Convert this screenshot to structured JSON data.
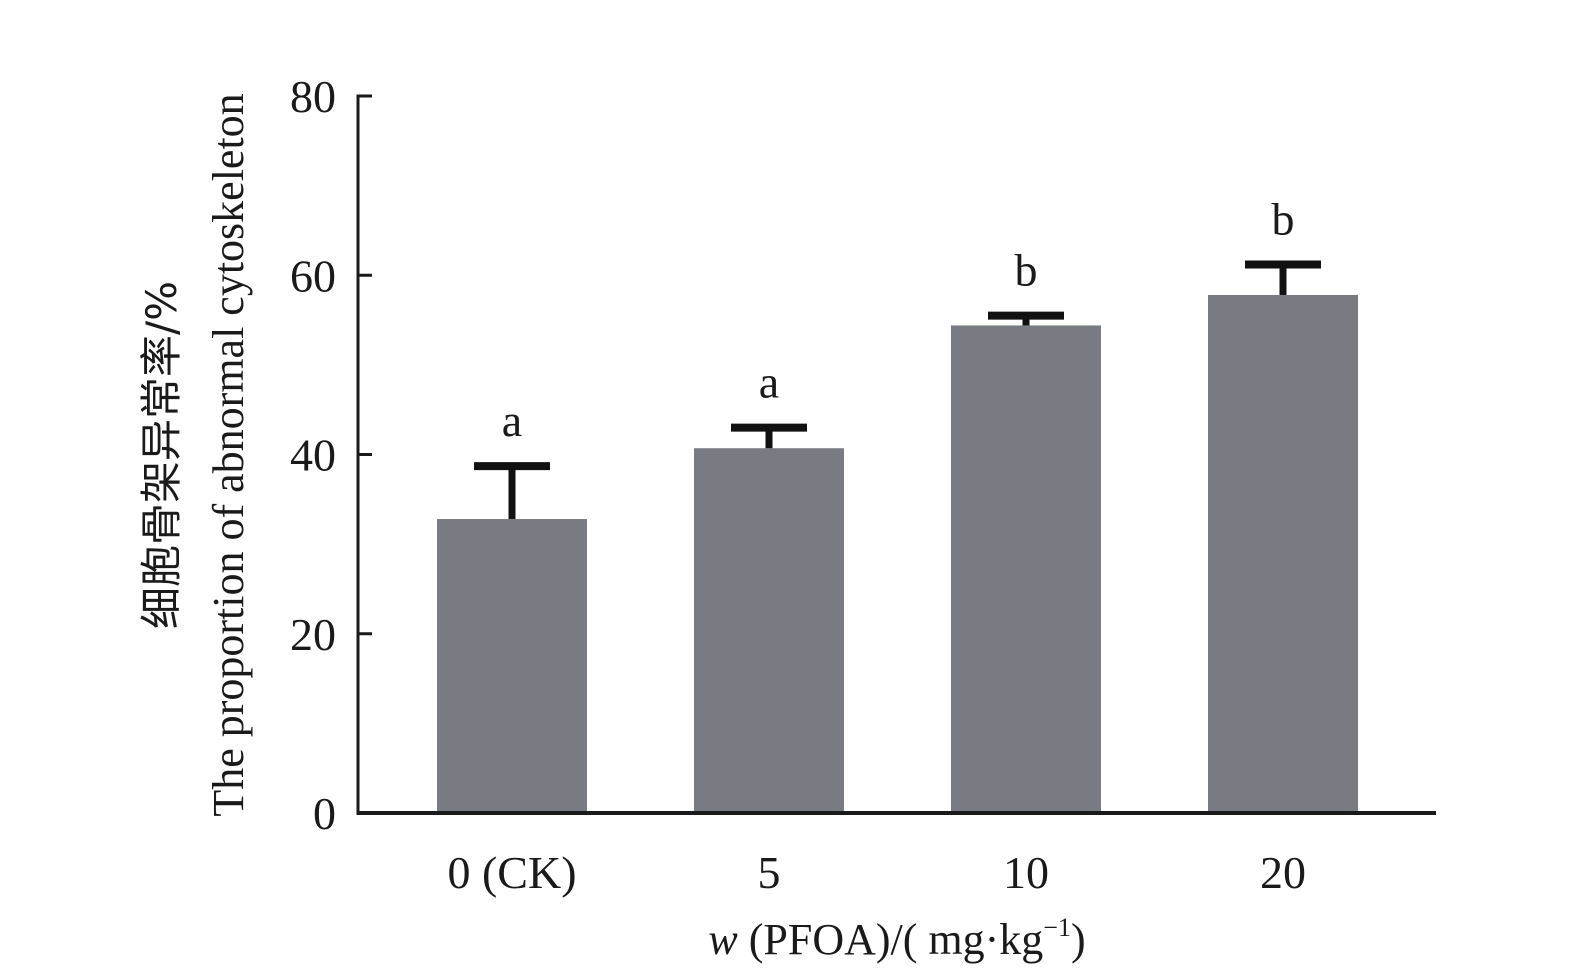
{
  "chart_data": {
    "type": "bar",
    "title": "",
    "categories": [
      "0 (CK)",
      "5",
      "10",
      "20"
    ],
    "values": [
      32.8,
      40.7,
      54.4,
      57.8
    ],
    "error_upper": [
      38.7,
      43.0,
      55.5,
      61.2
    ],
    "significance_letters": [
      "a",
      "a",
      "b",
      "b"
    ],
    "xlabel": {
      "italic_prefix": "w",
      "rest": " (PFOA)/( mg·kg",
      "superscript": "−1",
      "suffix": ")"
    },
    "ylabel_cn": "细胞骨架异常率/%",
    "ylabel_en": "The proportion of abnormal cytoskeleton",
    "ylim": [
      0,
      80
    ],
    "yticks": [
      0,
      20,
      40,
      60,
      80
    ],
    "grid": false,
    "legend": "none",
    "bar_color": "#797b82",
    "error_bar_color": "#111111"
  }
}
